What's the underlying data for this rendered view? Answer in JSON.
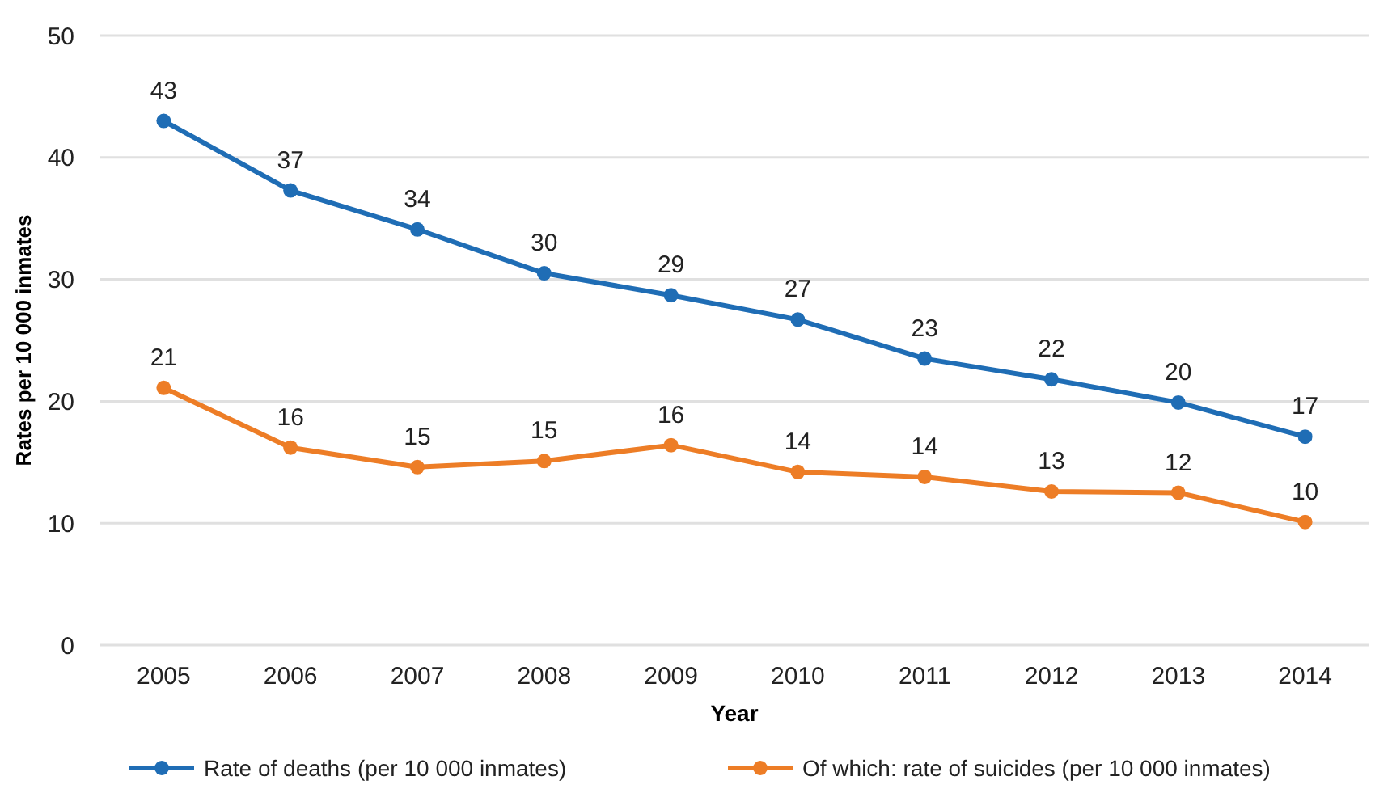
{
  "chart_data": {
    "type": "line",
    "xlabel": "Year",
    "ylabel": "Rates per 10 000 inmates",
    "categories": [
      "2005",
      "2006",
      "2007",
      "2008",
      "2009",
      "2010",
      "2011",
      "2012",
      "2013",
      "2014"
    ],
    "series": [
      {
        "name": "Rate of deaths (per 10 000 inmates)",
        "color": "#1f6db5",
        "values": [
          43,
          37.3,
          34.1,
          30.5,
          28.7,
          26.7,
          23.5,
          21.8,
          19.9,
          17.1
        ],
        "value_labels": [
          "43",
          "37",
          "34",
          "30",
          "29",
          "27",
          "23",
          "22",
          "20",
          "17"
        ]
      },
      {
        "name": "Of which: rate of suicides (per 10 000 inmates)",
        "color": "#ed7d26",
        "values": [
          21.1,
          16.2,
          14.6,
          15.1,
          16.4,
          14.2,
          13.8,
          12.6,
          12.5,
          10.1
        ],
        "value_labels": [
          "21",
          "16",
          "15",
          "15",
          "16",
          "14",
          "14",
          "13",
          "12",
          "10"
        ]
      }
    ],
    "ylim": [
      0,
      50
    ],
    "yticks": [
      0,
      10,
      20,
      30,
      40,
      50
    ],
    "grid": "y",
    "legend": "bottom",
    "marker": "circle",
    "line_style": "solid"
  }
}
